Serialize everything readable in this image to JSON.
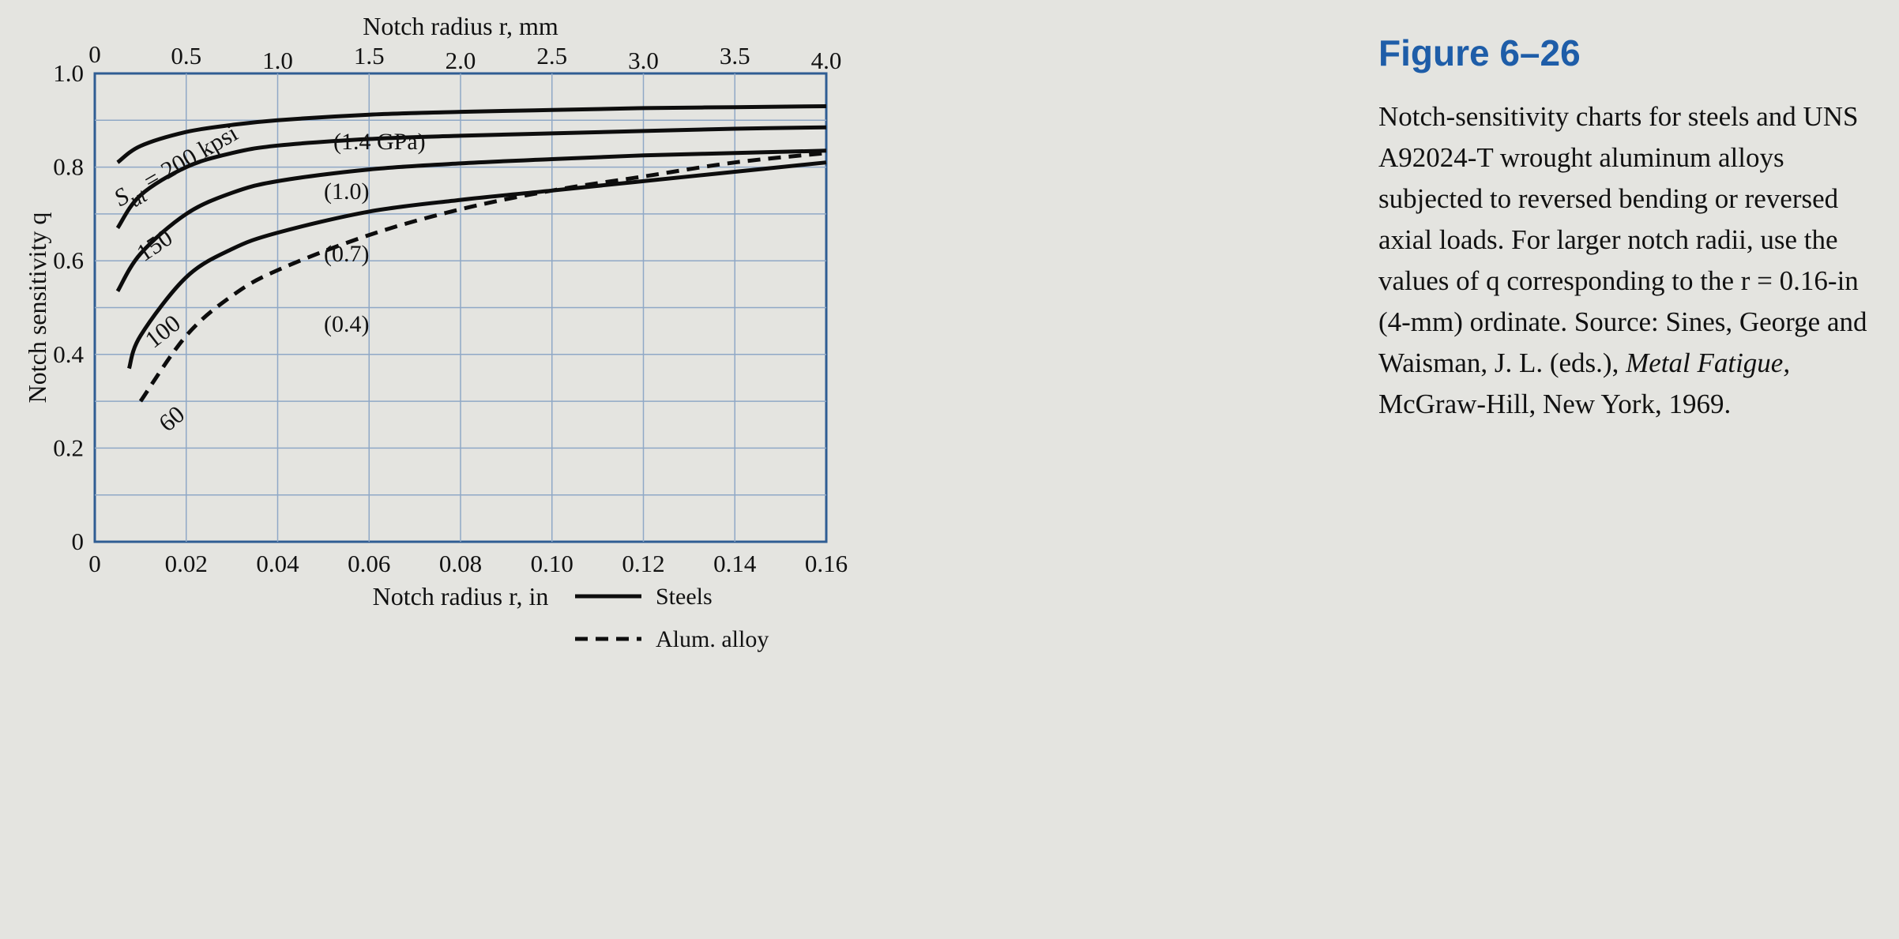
{
  "figure": {
    "title": "Figure 6–26",
    "caption": {
      "part1": "Notch-sensitivity charts for steels and UNS A92024-T wrought aluminum alloys subjected to reversed bending or reversed axial loads. For larger notch radii, use the values of q corresponding to the r = 0.16-in (4-mm) ordinate. Source: Sines, George and Waisman, J. L. (eds.),",
      "italic": "Metal Fatigue,",
      "part2": "McGraw-Hill, New York, 1969."
    }
  },
  "chart_data": {
    "type": "line",
    "xlabel": "Notch radius r, in",
    "x2label": "Notch radius r, mm",
    "ylabel": "Notch sensitivity q",
    "xlim": [
      0,
      0.16
    ],
    "ylim": [
      0,
      1.0
    ],
    "x2lim": [
      0,
      4.0
    ],
    "grid": true,
    "x_ticks": [
      "0",
      "0.02",
      "0.04",
      "0.06",
      "0.08",
      "0.10",
      "0.12",
      "0.14",
      "0.16"
    ],
    "x2_ticks": [
      "0",
      "0.5",
      "1.0",
      "1.5",
      "2.0",
      "2.5",
      "3.0",
      "3.5",
      "4.0"
    ],
    "y_ticks": [
      "0",
      "0.2",
      "0.4",
      "0.6",
      "0.8",
      "1.0"
    ],
    "series": [
      {
        "name": "Steels",
        "label": "S_ut = 200 kpsi",
        "label2": "(1.4 GPa)",
        "style": "solid",
        "x": [
          0.005,
          0.01,
          0.02,
          0.03,
          0.04,
          0.06,
          0.08,
          0.1,
          0.12,
          0.14,
          0.16
        ],
        "y": [
          0.81,
          0.845,
          0.875,
          0.89,
          0.9,
          0.912,
          0.918,
          0.922,
          0.926,
          0.928,
          0.93
        ]
      },
      {
        "name": "Steels",
        "label": "150",
        "label2": "(1.0)",
        "style": "solid",
        "x": [
          0.005,
          0.01,
          0.02,
          0.03,
          0.04,
          0.06,
          0.08,
          0.1,
          0.12,
          0.14,
          0.16
        ],
        "y": [
          0.67,
          0.74,
          0.8,
          0.83,
          0.846,
          0.86,
          0.867,
          0.872,
          0.877,
          0.882,
          0.885
        ]
      },
      {
        "name": "Steels",
        "label": "100",
        "label2": "(0.7)",
        "style": "solid",
        "x": [
          0.005,
          0.01,
          0.02,
          0.03,
          0.04,
          0.06,
          0.08,
          0.1,
          0.12,
          0.14,
          0.16
        ],
        "y": [
          0.535,
          0.615,
          0.7,
          0.745,
          0.77,
          0.795,
          0.808,
          0.817,
          0.825,
          0.83,
          0.835
        ]
      },
      {
        "name": "Steels",
        "label": "60",
        "label2": "(0.4)",
        "style": "solid",
        "x": [
          0.0075,
          0.01,
          0.02,
          0.03,
          0.04,
          0.06,
          0.08,
          0.1,
          0.12,
          0.14,
          0.16
        ],
        "y": [
          0.37,
          0.44,
          0.565,
          0.625,
          0.66,
          0.705,
          0.73,
          0.75,
          0.77,
          0.79,
          0.81
        ]
      },
      {
        "name": "Alum. alloy",
        "style": "dashed",
        "x": [
          0.01,
          0.02,
          0.03,
          0.04,
          0.06,
          0.08,
          0.1,
          0.12,
          0.14,
          0.16
        ],
        "y": [
          0.3,
          0.44,
          0.525,
          0.58,
          0.655,
          0.71,
          0.75,
          0.78,
          0.81,
          0.83
        ]
      }
    ],
    "legend": {
      "placement": "lower-right",
      "items": [
        {
          "label": "Steels",
          "style": "solid"
        },
        {
          "label": "Alum. alloy",
          "style": "dashed"
        }
      ]
    }
  }
}
